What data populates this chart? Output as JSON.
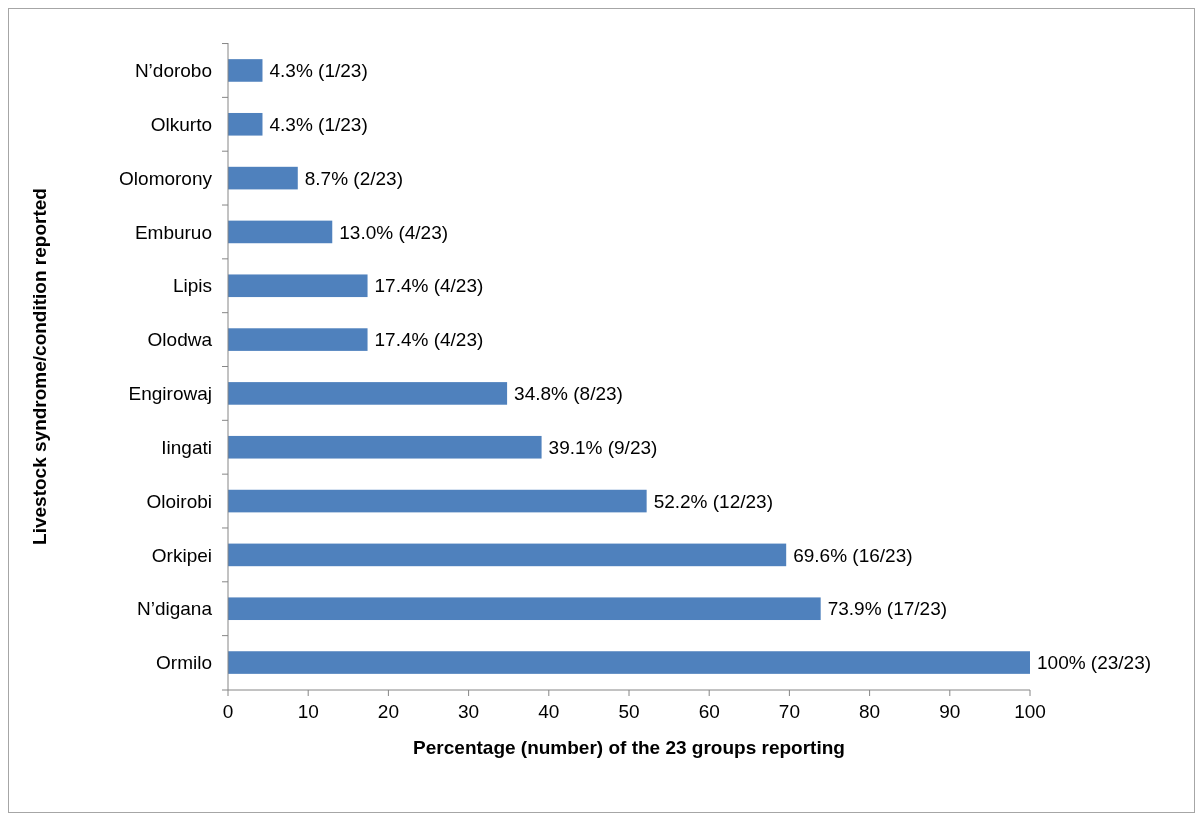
{
  "chart_data": {
    "type": "bar",
    "orientation": "horizontal",
    "categories": [
      "N’dorobo",
      "Olkurto",
      "Olomorony",
      "Emburuo",
      "Lipis",
      "Olodwa",
      "Engirowaj",
      "Iingati",
      "Oloirobi",
      "Orkipei",
      "N’digana",
      "Ormilo"
    ],
    "values": [
      4.3,
      4.3,
      8.7,
      13.0,
      17.4,
      17.4,
      34.8,
      39.1,
      52.2,
      69.6,
      73.9,
      100
    ],
    "value_labels": [
      "4.3% (1/23)",
      "4.3% (1/23)",
      "8.7% (2/23)",
      "13.0% (4/23)",
      "17.4% (4/23)",
      "17.4% (4/23)",
      "34.8% (8/23)",
      "39.1% (9/23)",
      "52.2% (12/23)",
      "69.6% (16/23)",
      "73.9% (17/23)",
      "100% (23/23)"
    ],
    "color": "#4f81bd",
    "xlim": [
      0,
      100
    ],
    "xticks": [
      0,
      10,
      20,
      30,
      40,
      50,
      60,
      70,
      80,
      90,
      100
    ],
    "xlabel": "Percentage (number) of the 23 groups reporting",
    "ylabel": "Livestock syndrome/condition reported",
    "grid": false
  }
}
